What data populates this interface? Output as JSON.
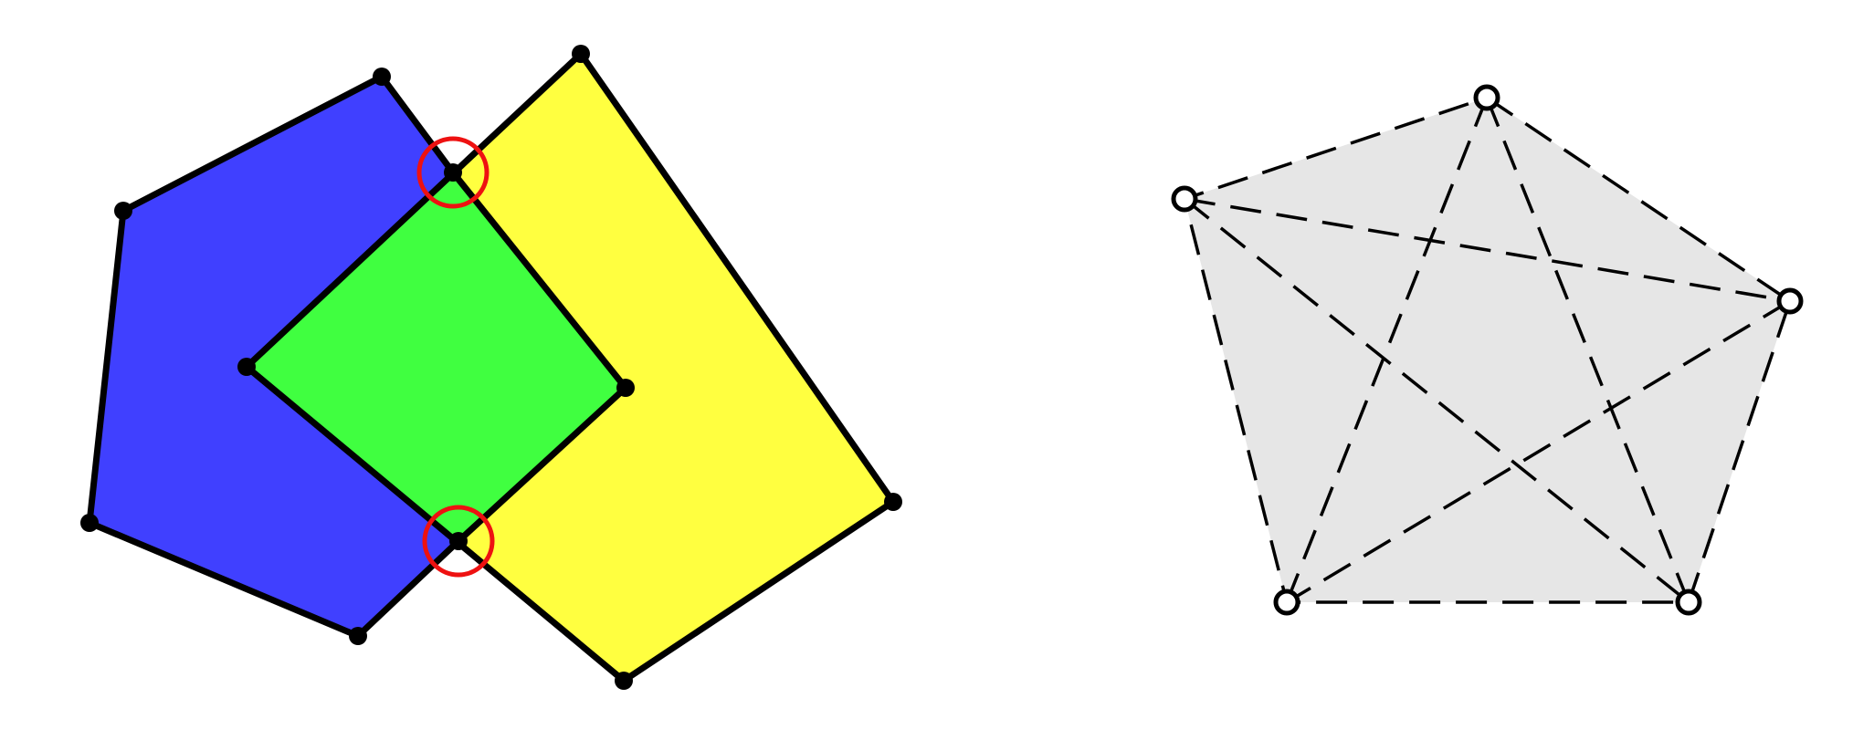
{
  "figure": {
    "left_panel": {
      "polygons": [
        {
          "name": "blue-hexagon",
          "color": "#4040ff"
        },
        {
          "name": "yellow-quadrilateral",
          "color": "#ffff40"
        },
        {
          "name": "green-intersection",
          "color": "#40ff40"
        }
      ],
      "vertex_marker": "filled-black-dot",
      "intersection_marker": {
        "shape": "circle",
        "color": "#ee1111",
        "count": 2
      }
    },
    "right_panel": {
      "polygon": {
        "name": "gray-pentagon",
        "fill": "#e6e6e6"
      },
      "vertex_marker": "hollow-circle",
      "edges": "dashed",
      "diagonals": "dashed",
      "vertex_count": 5
    }
  }
}
